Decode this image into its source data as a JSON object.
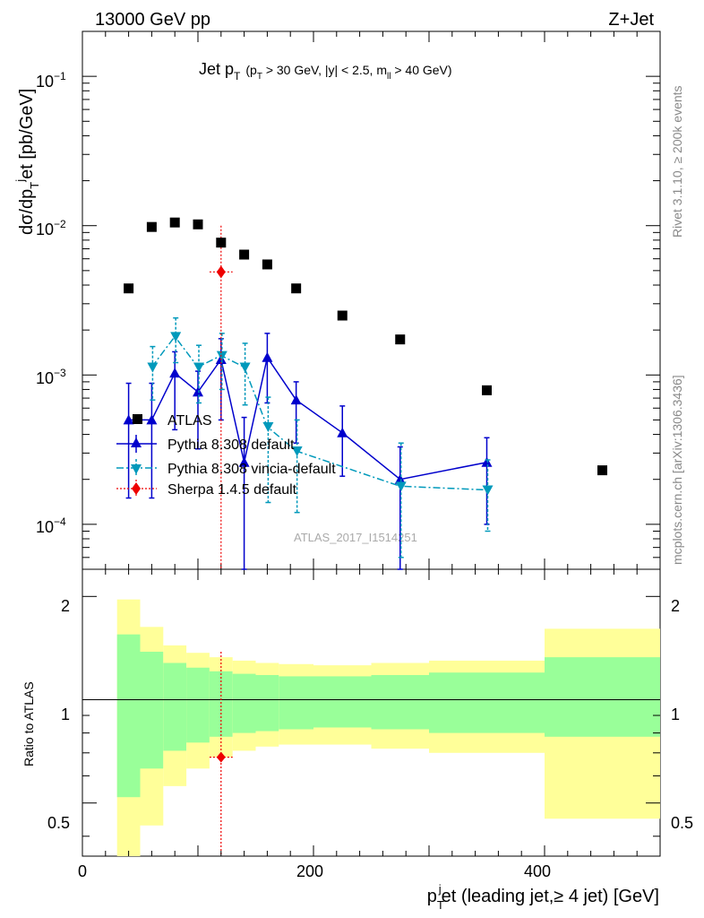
{
  "header": {
    "left": "13000 GeV pp",
    "right": "Z+Jet"
  },
  "title": {
    "main": "Jet p",
    "main_sub": "T",
    "cut_open": "(p",
    "cut_sub1": "T",
    "cut_mid": " > 30 GeV, |y| < 2.5, m",
    "cut_sub2": "ll",
    "cut_end": " > 40 GeV)"
  },
  "side_labels": {
    "rivet": "Rivet 3.1.10, ≥ 200k events",
    "mcplots": "mcplots.cern.ch [arXiv:1306.3436]"
  },
  "analysis_tag": "ATLAS_2017_I1514251",
  "ylabel_top": {
    "main": "dσ/dp",
    "sub": "T",
    "sup": "j",
    "tail": "et [pb/GeV]"
  },
  "ylabel_bottom": "Ratio to ATLAS",
  "xlabel": {
    "main": "p",
    "sub": "T",
    "sup": "j",
    "tail": "et (leading jet,≥ 4 jet) [GeV]"
  },
  "legend": [
    "ATLAS",
    "Pythia 8.308 default",
    "Pythia 8.308 vincia-default",
    "Sherpa 1.4.5 default"
  ],
  "top_tick_labels": [
    {
      "b": "10",
      "e": "−1"
    },
    {
      "b": "10",
      "e": "−2"
    },
    {
      "b": "10",
      "e": "−3"
    },
    {
      "b": "10",
      "e": "−4"
    }
  ],
  "bottom_tick_labels": [
    "2",
    "1",
    "0.5"
  ],
  "x_tick_labels": [
    "0",
    "200",
    "400"
  ],
  "colors": {
    "data": "#000000",
    "pythia": "#0000cc",
    "vincia": "#0099bb",
    "sherpa": "#ee0000",
    "band_inner": "#99ff99",
    "band_outer": "#ffff99"
  },
  "chart_data": [
    {
      "type": "scatter",
      "name_panel": "main",
      "xlim": [
        0,
        500
      ],
      "ylim": [
        5e-05,
        0.2
      ],
      "log_y": true,
      "series": [
        {
          "name": "ATLAS",
          "marker": "square",
          "x": [
            40,
            60,
            80,
            100,
            120,
            140,
            160,
            185,
            225,
            275,
            350,
            450
          ],
          "y": [
            0.0038,
            0.0098,
            0.0105,
            0.0102,
            0.0077,
            0.0064,
            0.0055,
            0.0038,
            0.0025,
            0.00173,
            0.00079,
            0.00023
          ]
        },
        {
          "name": "Pythia 8.308 default",
          "marker": "triangle-up",
          "line": "solid",
          "x": [
            40,
            60,
            80,
            100,
            120,
            140,
            160,
            185,
            225,
            275,
            350
          ],
          "y": [
            0.0005,
            0.0005,
            0.00103,
            0.00077,
            0.00127,
            0.00026,
            0.00131,
            0.00068,
            0.00041,
            0.0002,
            0.00026
          ],
          "err_lo": [
            0.00035,
            0.00035,
            0.0006,
            0.00045,
            0.00077,
            0.00025,
            0.00066,
            0.00033,
            0.0002,
            0.00016,
            0.00016
          ],
          "err_hi": [
            0.00038,
            0.00038,
            0.0004,
            0.00029,
            0.00048,
            0.00026,
            0.00059,
            0.00022,
            0.00021,
            0.00013,
            0.00012
          ]
        },
        {
          "name": "Pythia 8.308 vincia-default",
          "marker": "triangle-down",
          "line": "dashdot",
          "x": [
            60,
            80,
            100,
            120,
            140,
            160,
            185,
            275,
            350
          ],
          "y": [
            0.00113,
            0.00181,
            0.00113,
            0.00135,
            0.00113,
            0.00045,
            0.00031,
            0.00018,
            0.00017
          ],
          "err_lo": [
            0.00045,
            0.0006,
            0.00048,
            0.00055,
            0.0005,
            0.00031,
            0.00019,
            0.00012,
            8e-05
          ],
          "err_hi": [
            0.00042,
            0.0006,
            0.00045,
            0.00055,
            0.0005,
            0.00026,
            0.00019,
            0.00017,
            0.0001
          ]
        },
        {
          "name": "Sherpa 1.4.5 default",
          "marker": "diamond",
          "line": "dotted",
          "x": [
            120
          ],
          "y": [
            0.0049
          ],
          "err_lo": [
            0.0049
          ],
          "err_hi": [
            0.0051
          ],
          "x_err": [
            10
          ]
        }
      ]
    },
    {
      "type": "area",
      "name_panel": "ratio",
      "xlim": [
        0,
        500
      ],
      "ylim": [
        0.35,
        2.4
      ],
      "log_y": true,
      "bins": [
        30,
        50,
        70,
        90,
        110,
        130,
        150,
        170,
        200,
        250,
        300,
        400,
        500
      ],
      "inner_lo": [
        0.52,
        0.63,
        0.71,
        0.75,
        0.78,
        0.8,
        0.81,
        0.82,
        0.83,
        0.82,
        0.8,
        0.78
      ],
      "inner_hi": [
        1.55,
        1.38,
        1.28,
        1.24,
        1.21,
        1.19,
        1.18,
        1.17,
        1.17,
        1.18,
        1.2,
        1.33
      ],
      "outer_lo": [
        0.35,
        0.43,
        0.56,
        0.63,
        0.68,
        0.71,
        0.73,
        0.74,
        0.74,
        0.72,
        0.7,
        0.45
      ],
      "outer_hi": [
        1.96,
        1.63,
        1.44,
        1.37,
        1.33,
        1.3,
        1.28,
        1.27,
        1.26,
        1.28,
        1.3,
        1.61
      ],
      "sherpa_ratio": {
        "x": 120,
        "y": 0.68,
        "hi": 1.38,
        "x_err": 10
      }
    }
  ]
}
